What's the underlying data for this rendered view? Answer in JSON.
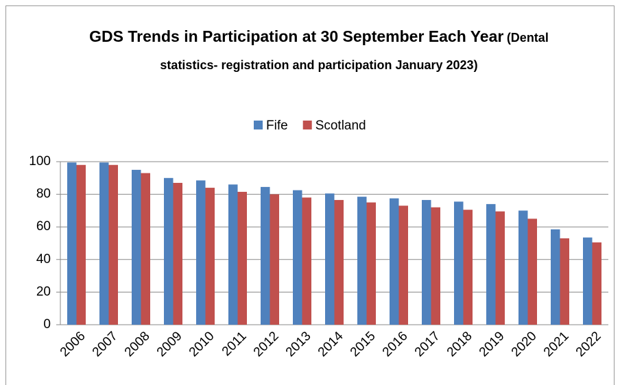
{
  "chart_data": {
    "type": "bar",
    "title": "GDS Trends in Participation at 30 September Each Year",
    "subtitle": "(Dental statistics- registration and participation January 2023)",
    "categories": [
      "2006",
      "2007",
      "2008",
      "2009",
      "2010",
      "2011",
      "2012",
      "2013",
      "2014",
      "2015",
      "2016",
      "2017",
      "2018",
      "2019",
      "2020",
      "2021",
      "2022"
    ],
    "series": [
      {
        "name": "Fife",
        "color": "#4f81bd",
        "values": [
          99.5,
          99.5,
          95,
          90,
          88.5,
          86,
          84.5,
          82.5,
          80.5,
          78.5,
          77.5,
          76.5,
          75.5,
          74,
          70,
          58.5,
          53.5
        ]
      },
      {
        "name": "Scotland",
        "color": "#c0504d",
        "values": [
          98,
          98,
          93,
          87,
          84,
          81.5,
          80,
          78,
          76.5,
          75,
          73,
          72,
          70.5,
          69.5,
          65,
          53,
          50.5
        ]
      }
    ],
    "ylim": [
      0,
      100
    ],
    "yticks": [
      0,
      20,
      40,
      60,
      80,
      100
    ],
    "grid": true,
    "legend": "top"
  }
}
